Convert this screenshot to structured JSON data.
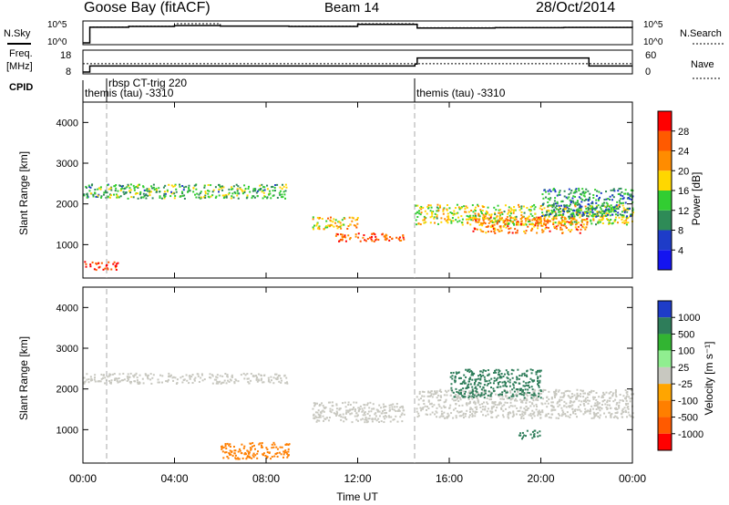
{
  "header": {
    "site": "Goose Bay (fitACF)",
    "beam": "Beam 14",
    "date": "28/Oct/2014"
  },
  "time_axis": {
    "label": "Time UT",
    "ticks": [
      "00:00",
      "04:00",
      "08:00",
      "12:00",
      "16:00",
      "20:00",
      "00:00"
    ],
    "range_hours": [
      0,
      24
    ]
  },
  "strip_labels": {
    "nsky": "N.Sky",
    "nsearch": "N.Search",
    "freq_top": "Freq.",
    "freq_unit": "[MHz]",
    "nave": "Nave",
    "cpid": "CPID",
    "noise_ticks": [
      "10^5",
      "10^0"
    ],
    "freq_ticks": [
      "18",
      "8"
    ],
    "nave_ticks": [
      "60",
      "0"
    ]
  },
  "cpid_labels": [
    "rbsp CT-trig 220",
    "themis (tau) -3310",
    "themis (tau) -3310"
  ],
  "power_panel": {
    "ylabel": "Slant Range [km]",
    "yticks": [
      "1000",
      "2000",
      "3000",
      "4000"
    ],
    "colorbar_label": "Power [dB]",
    "colorbar_ticks": [
      "4",
      "8",
      "12",
      "16",
      "20",
      "24",
      "28"
    ],
    "colors": [
      "#1414f0",
      "#1e3cc8",
      "#2e8b57",
      "#32cd32",
      "#ffd700",
      "#ff8c00",
      "#ff5a00",
      "#ff0000"
    ]
  },
  "velocity_panel": {
    "ylabel": "Slant Range [km]",
    "yticks": [
      "1000",
      "2000",
      "3000",
      "4000"
    ],
    "colorbar_label": "Velocity [m s⁻¹]",
    "colorbar_ticks": [
      "1000",
      "500",
      "100",
      "25",
      "-25",
      "-100",
      "-500",
      "-1000"
    ],
    "colors": [
      "#1e3cc8",
      "#2e7d5a",
      "#32b432",
      "#90ee90",
      "#c8c8c0",
      "#ffa500",
      "#ff7f00",
      "#ff5a00",
      "#ff0000"
    ]
  },
  "chart_data": [
    {
      "type": "line",
      "title": "Goose Bay (fitACF) Beam 14 28/Oct/2014",
      "series": [
        {
          "name": "N.Sky",
          "x": [
            0,
            0.3,
            2,
            4,
            6,
            9,
            12,
            14.5,
            14.6,
            18,
            21,
            24
          ],
          "values": [
            1,
            8000,
            12000,
            20000,
            15000,
            12000,
            40000,
            40000,
            5000,
            6000,
            7000,
            6000
          ]
        },
        {
          "name": "N.Search",
          "x": [
            0,
            0.3,
            2,
            4,
            6,
            9,
            12,
            14.5,
            14.6,
            18,
            21,
            24
          ],
          "values": [
            1,
            9000,
            14000,
            60000,
            16000,
            14000,
            60000,
            50000,
            6000,
            7000,
            8000,
            7000
          ]
        }
      ],
      "ylim": [
        1,
        100000
      ],
      "yscale": "log"
    },
    {
      "type": "line",
      "series": [
        {
          "name": "Freq. [MHz]",
          "x": [
            0,
            0.3,
            11.5,
            14.5,
            14.6,
            22,
            22.1,
            24
          ],
          "values": [
            8,
            11,
            11,
            12,
            15,
            15,
            11,
            11
          ]
        },
        {
          "name": "Nave",
          "x": [
            0,
            24
          ],
          "values": [
            25,
            25
          ]
        }
      ],
      "xlabel": "Time UT"
    },
    {
      "type": "heatmap",
      "title": "Power [dB]",
      "xlabel": "Time UT",
      "ylabel": "Slant Range [km]",
      "xlim": [
        0,
        24
      ],
      "ylim": [
        180,
        4500
      ],
      "zlim": [
        0,
        30
      ],
      "bands": [
        {
          "t": [
            0,
            9
          ],
          "r": [
            2150,
            2500
          ],
          "value": 12
        },
        {
          "t": [
            10,
            12
          ],
          "r": [
            1400,
            1700
          ],
          "value": 18
        },
        {
          "t": [
            11,
            14
          ],
          "r": [
            1100,
            1300
          ],
          "value": 24
        },
        {
          "t": [
            14.5,
            24
          ],
          "r": [
            1500,
            2000
          ],
          "value": 16
        },
        {
          "t": [
            0,
            1.5
          ],
          "r": [
            400,
            600
          ],
          "value": 26
        },
        {
          "t": [
            17,
            22
          ],
          "r": [
            1300,
            1700
          ],
          "value": 22
        },
        {
          "t": [
            20,
            24
          ],
          "r": [
            1700,
            2400
          ],
          "value": 10
        }
      ]
    },
    {
      "type": "heatmap",
      "title": "Velocity [m s⁻¹]",
      "xlabel": "Time UT",
      "ylabel": "Slant Range [km]",
      "xlim": [
        0,
        24
      ],
      "ylim": [
        180,
        4500
      ],
      "zlim": [
        -1000,
        1000
      ],
      "bands": [
        {
          "t": [
            0,
            9
          ],
          "r": [
            2150,
            2400
          ],
          "value": 0
        },
        {
          "t": [
            10,
            14
          ],
          "r": [
            1200,
            1700
          ],
          "value": 0
        },
        {
          "t": [
            14.5,
            24
          ],
          "r": [
            1300,
            2000
          ],
          "value": 0
        },
        {
          "t": [
            6,
            9
          ],
          "r": [
            300,
            700
          ],
          "value": -200
        },
        {
          "t": [
            16,
            20
          ],
          "r": [
            1800,
            2500
          ],
          "value": 300
        },
        {
          "t": [
            19,
            20
          ],
          "r": [
            800,
            1000
          ],
          "value": 400
        }
      ]
    }
  ]
}
